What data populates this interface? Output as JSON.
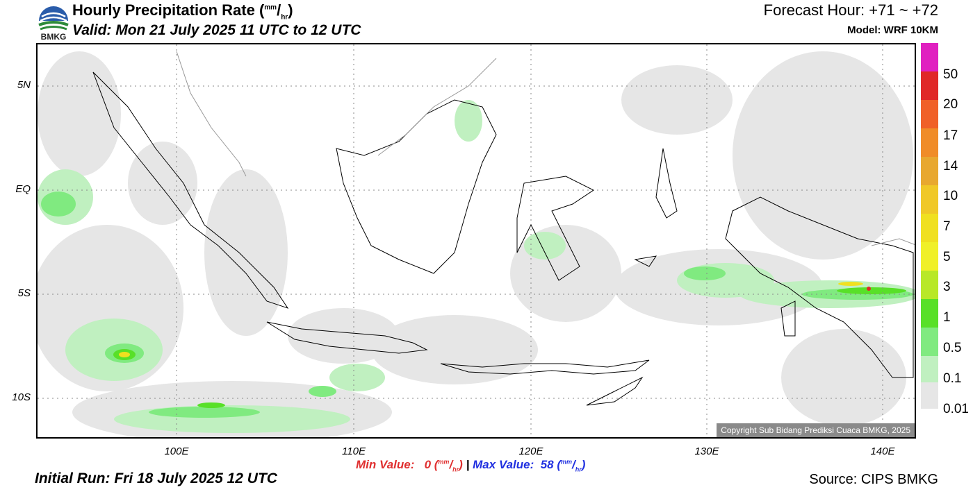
{
  "header": {
    "title_main": "Hourly Precipitation Rate (",
    "unit_num": "mm",
    "unit_sep": "/",
    "unit_den": "hr",
    "title_close": ")",
    "valid": "Valid: Mon 21 July 2025 11 UTC to 12 UTC",
    "forecast_hour": "Forecast Hour: +71 ~ +72",
    "model": "Model: WRF 10KM",
    "logo_text": "BMKG"
  },
  "axes": {
    "lat_labels": [
      "5N",
      "EQ",
      "5S",
      "10S"
    ],
    "lon_labels": [
      "100E",
      "110E",
      "120E",
      "130E",
      "140E"
    ]
  },
  "copyright": "Copyright Sub Bidang Prediksi Cuaca BMKG, 2025",
  "stats": {
    "min_label": "Min Value:",
    "min_value": "0",
    "max_label": "Max Value:",
    "max_value": "58",
    "separator": "|"
  },
  "footer": {
    "initial_run": "Initial Run: Fri 18 July 2025 12 UTC",
    "source": "Source: CIPS BMKG"
  },
  "legend": {
    "labels": [
      "50",
      "20",
      "17",
      "14",
      "10",
      "7",
      "5",
      "3",
      "1",
      "0.5",
      "0.1",
      "0.01"
    ],
    "colors": [
      "#e020c0",
      "#e02828",
      "#f06028",
      "#f08c28",
      "#e8a830",
      "#f0c828",
      "#f0e020",
      "#f0f028",
      "#b8e828",
      "#58e028",
      "#80ea80",
      "#c0f0c0",
      "#e6e6e6"
    ]
  }
}
